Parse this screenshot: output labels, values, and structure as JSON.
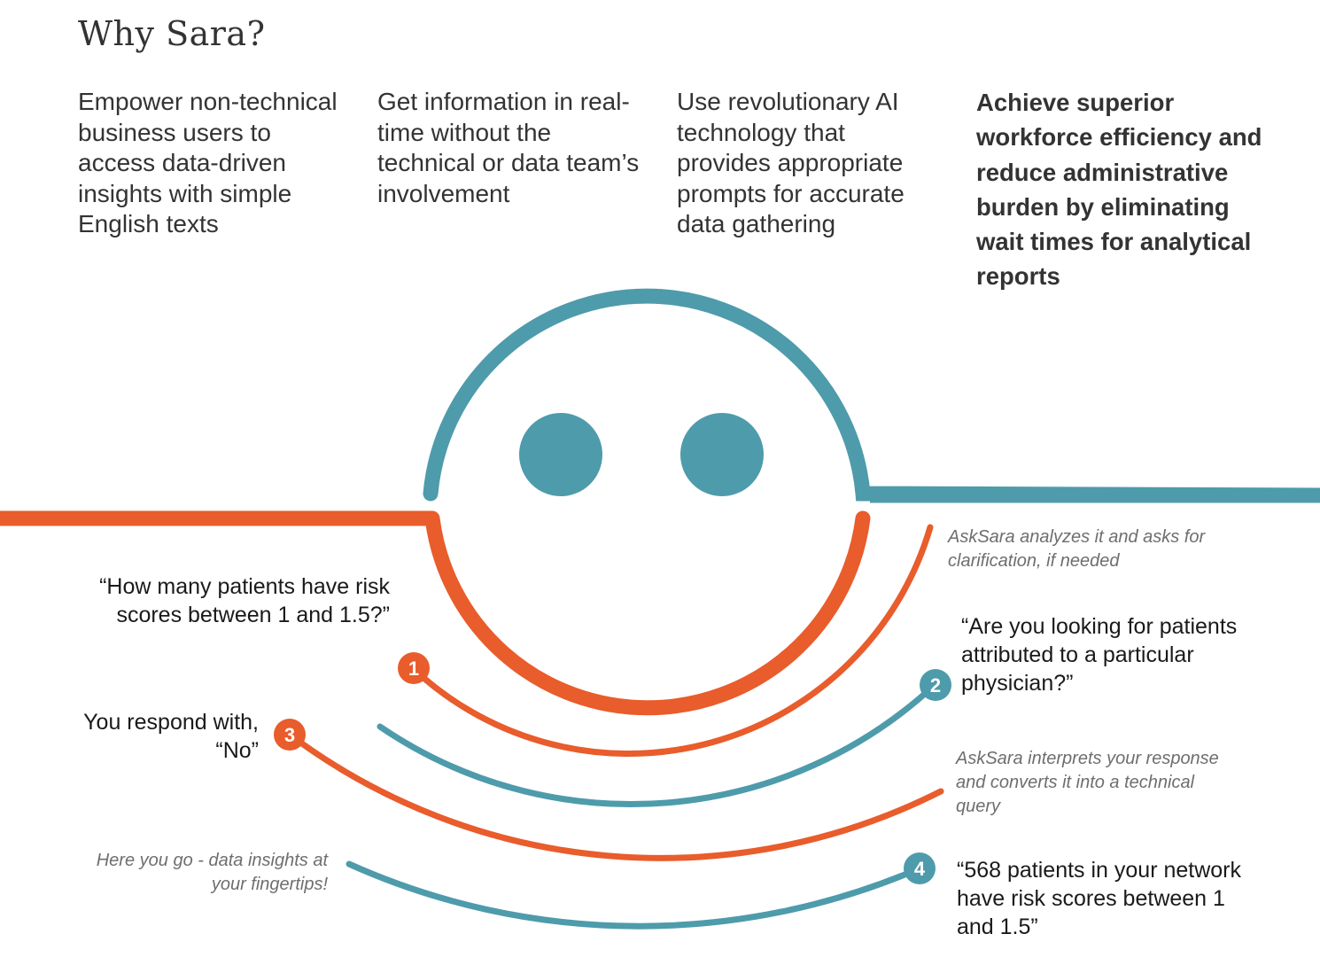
{
  "title": "Why Sara?",
  "benefits": [
    "Empower non-technical business users to access data-driven insights with simple English texts",
    "Get information in real-time without the technical or data team’s involvement",
    "Use revolutionary AI technology that provides appropriate prompts for accurate data gathering",
    "Achieve superior workforce efficiency and reduce administrative burden by eliminating wait times for analytical reports"
  ],
  "flow": {
    "step1_question": "“How many patients have risk scores between 1 and 1.5?”",
    "note_analyze": "AskSara analyzes it and asks for clarification, if needed",
    "step2_clarification": "“Are you looking for patients attributed to a particular physician?”",
    "step3_response": "You respond with, “No”",
    "note_interpret": "AskSara interprets your response and converts it into a technical query",
    "note_result": "Here you go - data insights at your fingertips!",
    "step4_answer": "“568 patients in your network have risk scores between 1 and 1.5”"
  },
  "badges": [
    "1",
    "2",
    "3",
    "4"
  ],
  "colors": {
    "teal": "#4e9bab",
    "orange": "#e95c2c",
    "text": "#333333",
    "note": "#6e6e6e"
  }
}
